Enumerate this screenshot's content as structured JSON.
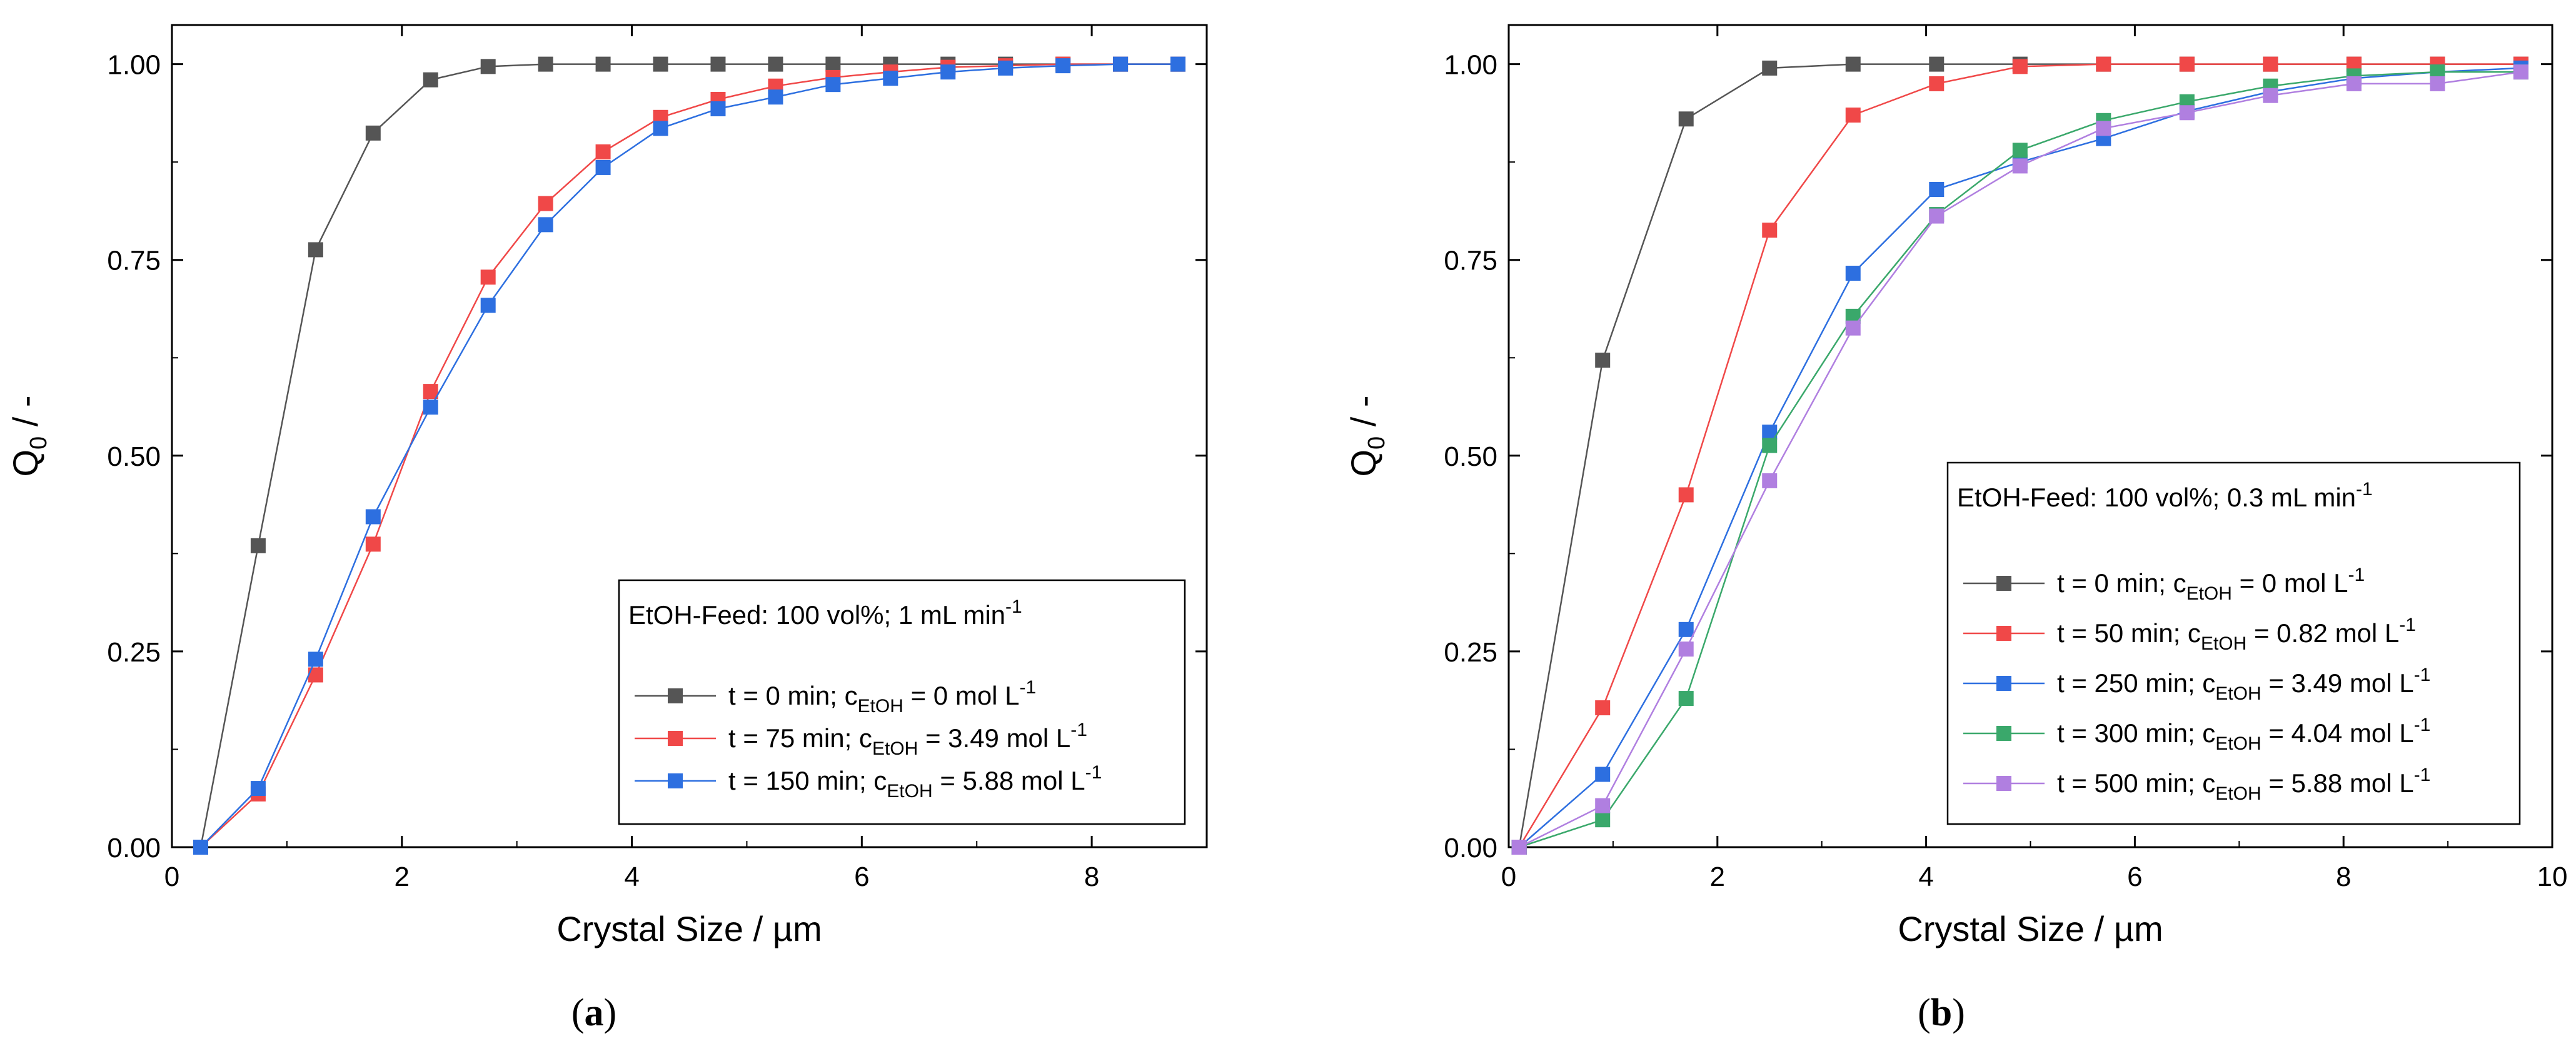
{
  "chart_data": [
    {
      "type": "line",
      "caption_letter": "a",
      "xlabel": "Crystal Size / µm",
      "ylabel_main": "Q",
      "ylabel_sub": "0",
      "ylabel_rest": " / -",
      "xlim": [
        0,
        9
      ],
      "ylim": [
        0,
        1.05
      ],
      "xticks": [
        0,
        2,
        4,
        6,
        8
      ],
      "xticklabels": [
        "0",
        "2",
        "4",
        "6",
        "8"
      ],
      "yticks": [
        0,
        0.25,
        0.5,
        0.75,
        1.0
      ],
      "yticklabels": [
        "0.00",
        "0.25",
        "0.50",
        "0.75",
        "1.00"
      ],
      "legend": {
        "placement": "lower-right",
        "title_main": "EtOH-Feed: 100 vol%; 1 mL min",
        "title_sup": "-1"
      },
      "series": [
        {
          "name": "t = 0 min",
          "label_prefix": "t =  0 min; c",
          "label_sub": "EtOH",
          "label_mid": " = 0 mol L",
          "label_sup": "-1",
          "color": "#555555",
          "x": [
            0.25,
            0.75,
            1.25,
            1.75,
            2.25,
            2.75,
            3.25,
            3.75,
            4.25,
            4.75,
            5.25,
            5.75,
            6.25,
            6.75,
            7.25,
            7.75,
            8.25,
            8.75
          ],
          "y": [
            0.0,
            0.385,
            0.763,
            0.912,
            0.98,
            0.997,
            1.0,
            1.0,
            1.0,
            1.0,
            1.0,
            1.0,
            1.0,
            1.0,
            1.0,
            1.0,
            1.0,
            1.0
          ]
        },
        {
          "name": "t = 75 min",
          "label_prefix": "t =  75 min; c",
          "label_sub": "EtOH",
          "label_mid": " = 3.49 mol L",
          "label_sup": "-1",
          "color": "#f04848",
          "x": [
            0.25,
            0.75,
            1.25,
            1.75,
            2.25,
            2.75,
            3.25,
            3.75,
            4.25,
            4.75,
            5.25,
            5.75,
            6.25,
            6.75,
            7.25,
            7.75,
            8.25,
            8.75
          ],
          "y": [
            0.0,
            0.068,
            0.22,
            0.387,
            0.582,
            0.728,
            0.822,
            0.888,
            0.932,
            0.955,
            0.972,
            0.983,
            0.99,
            0.996,
            0.998,
            1.0,
            1.0,
            1.0
          ]
        },
        {
          "name": "t = 150 min",
          "label_prefix": "t =  150 min; c",
          "label_sub": "EtOH",
          "label_mid": " = 5.88 mol L",
          "label_sup": "-1",
          "color": "#2d6fe0",
          "x": [
            0.25,
            0.75,
            1.25,
            1.75,
            2.25,
            2.75,
            3.25,
            3.75,
            4.25,
            4.75,
            5.25,
            5.75,
            6.25,
            6.75,
            7.25,
            7.75,
            8.25,
            8.75
          ],
          "y": [
            0.0,
            0.075,
            0.24,
            0.422,
            0.562,
            0.692,
            0.795,
            0.868,
            0.918,
            0.943,
            0.958,
            0.974,
            0.982,
            0.99,
            0.995,
            0.998,
            1.0,
            1.0
          ]
        }
      ]
    },
    {
      "type": "line",
      "caption_letter": "b",
      "xlabel": "Crystal Size / µm",
      "ylabel_main": "Q",
      "ylabel_sub": "0",
      "ylabel_rest": " / -",
      "xlim": [
        0,
        10
      ],
      "ylim": [
        0,
        1.05
      ],
      "xticks": [
        0,
        2,
        4,
        6,
        8,
        10
      ],
      "xticklabels": [
        "0",
        "2",
        "4",
        "6",
        "8",
        "10"
      ],
      "yticks": [
        0,
        0.25,
        0.5,
        0.75,
        1.0
      ],
      "yticklabels": [
        "0.00",
        "0.25",
        "0.50",
        "0.75",
        "1.00"
      ],
      "legend": {
        "placement": "lower-right",
        "title_main": "EtOH-Feed: 100 vol%; 0.3 mL min",
        "title_sup": "-1"
      },
      "series": [
        {
          "name": "t = 0 min",
          "label_prefix": "t =  0 min; c",
          "label_sub": "EtOH",
          "label_mid": " = 0 mol L",
          "label_sup": "-1",
          "color": "#555555",
          "x": [
            0.1,
            0.9,
            1.7,
            2.5,
            3.3,
            4.1,
            4.9,
            5.7,
            6.5,
            7.3,
            8.1,
            8.9,
            9.7
          ],
          "y": [
            0.0,
            0.622,
            0.93,
            0.995,
            1.0,
            1.0,
            1.0,
            1.0,
            1.0,
            1.0,
            1.0,
            1.0,
            1.0
          ]
        },
        {
          "name": "t = 50 min",
          "label_prefix": "t =  50 min; c",
          "label_sub": "EtOH",
          "label_mid": " = 0.82 mol L",
          "label_sup": "-1",
          "color": "#f04848",
          "x": [
            0.1,
            0.9,
            1.7,
            2.5,
            3.3,
            4.1,
            4.9,
            5.7,
            6.5,
            7.3,
            8.1,
            8.9,
            9.7
          ],
          "y": [
            0.0,
            0.178,
            0.45,
            0.788,
            0.935,
            0.975,
            0.997,
            1.0,
            1.0,
            1.0,
            1.0,
            1.0,
            1.0
          ]
        },
        {
          "name": "t = 250 min",
          "label_prefix": "t =  250 min; c",
          "label_sub": "EtOH",
          "label_mid": " = 3.49 mol L",
          "label_sup": "-1",
          "color": "#2d6fe0",
          "x": [
            0.1,
            0.9,
            1.7,
            2.5,
            3.3,
            4.1,
            4.9,
            5.7,
            6.5,
            7.3,
            8.1,
            8.9,
            9.7
          ],
          "y": [
            0.0,
            0.093,
            0.278,
            0.53,
            0.733,
            0.84,
            0.875,
            0.905,
            0.94,
            0.965,
            0.982,
            0.99,
            0.995
          ]
        },
        {
          "name": "t = 300 min",
          "label_prefix": "t =  300 min; c",
          "label_sub": "EtOH",
          "label_mid": " = 4.04 mol L",
          "label_sup": "-1",
          "color": "#3aa86b",
          "x": [
            0.1,
            0.9,
            1.7,
            2.5,
            3.3,
            4.1,
            4.9,
            5.7,
            6.5,
            7.3,
            8.1,
            8.9,
            9.7
          ],
          "y": [
            0.0,
            0.035,
            0.19,
            0.513,
            0.678,
            0.808,
            0.89,
            0.928,
            0.952,
            0.972,
            0.985,
            0.99,
            0.99
          ]
        },
        {
          "name": "t = 500 min",
          "label_prefix": "t =  500 min; c",
          "label_sub": "EtOH",
          "label_mid": " = 5.88 mol L",
          "label_sup": "-1",
          "color": "#b07fe0",
          "x": [
            0.1,
            0.9,
            1.7,
            2.5,
            3.3,
            4.1,
            4.9,
            5.7,
            6.5,
            7.3,
            8.1,
            8.9,
            9.7
          ],
          "y": [
            0.0,
            0.053,
            0.253,
            0.468,
            0.663,
            0.806,
            0.87,
            0.918,
            0.938,
            0.96,
            0.975,
            0.975,
            0.99
          ]
        }
      ]
    }
  ]
}
